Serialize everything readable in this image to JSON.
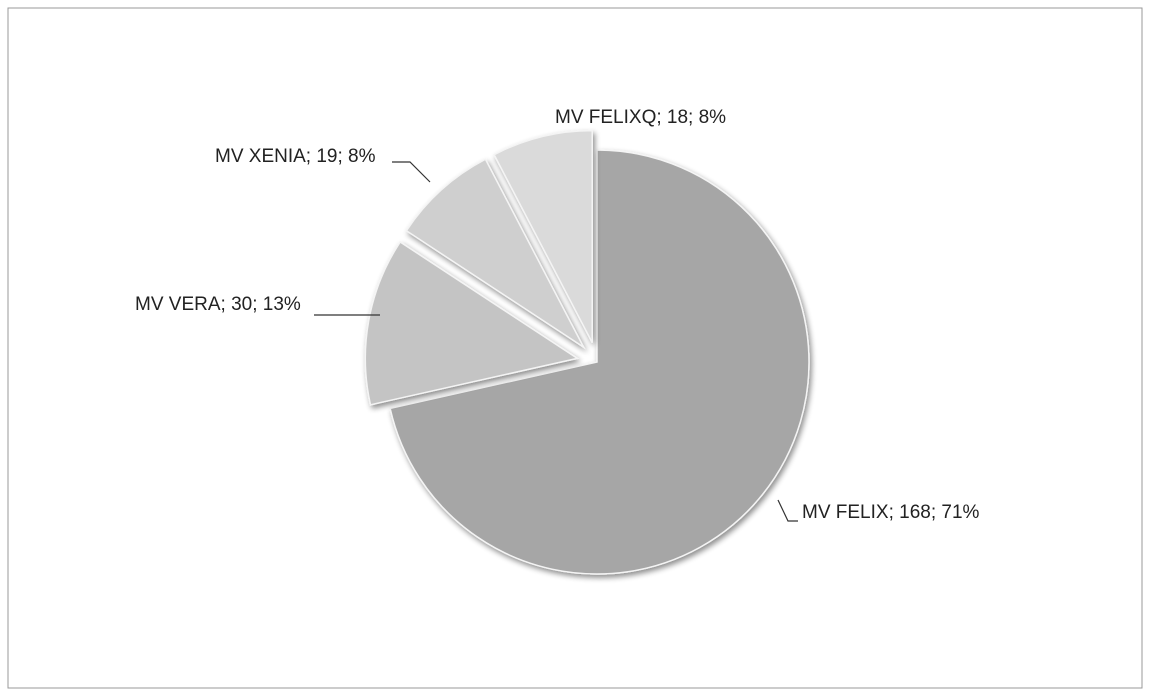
{
  "chart_data": {
    "type": "pie",
    "values": [
      168,
      30,
      19,
      18
    ],
    "value_labels": [
      "MV FELIX; 168; 71%",
      "MV VERA; 30; 13%",
      "MV XENIA; 19; 8%",
      "MV FELIXQ; 18; 8%"
    ],
    "colors": [
      "#a6a6a6",
      "#c4c4c4",
      "#cfcfcf",
      "#dadada"
    ],
    "explode": [
      0,
      1,
      1,
      1
    ]
  }
}
